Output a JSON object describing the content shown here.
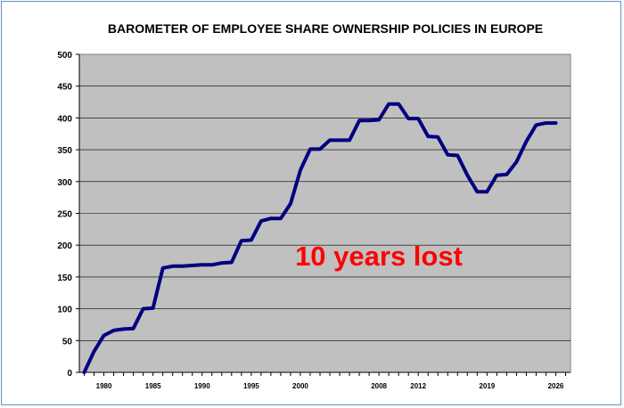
{
  "chart_data": {
    "type": "line",
    "title": "BAROMETER OF EMPLOYEE SHARE OWNERSHIP POLICIES IN EUROPE",
    "xlabel": "",
    "ylabel": "",
    "ylim": [
      0,
      500
    ],
    "yticks": [
      "0",
      "50",
      "100",
      "150",
      "200",
      "250",
      "300",
      "350",
      "400",
      "450",
      "500"
    ],
    "xtick_labels": [
      "1980",
      "1985",
      "1990",
      "1995",
      "2000",
      "2008",
      "2012",
      "2019",
      "2026"
    ],
    "xlim": [
      1977.5,
      2027.5
    ],
    "grid": true,
    "annotation": "10 years lost",
    "line_color": "#000080",
    "plot_background": "#c0c0c0",
    "series": [
      {
        "x": [
          1978,
          1979,
          1980,
          1981,
          1982,
          1983,
          1984,
          1985,
          1986,
          1987,
          1988,
          1989,
          1990,
          1991,
          1992,
          1993,
          1994,
          1995,
          1996,
          1997,
          1998,
          1999,
          2000,
          2001,
          2002,
          2003,
          2004,
          2005,
          2006,
          2007,
          2008,
          2009,
          2010,
          2011,
          2012,
          2013,
          2014,
          2015,
          2016,
          2017,
          2018,
          2019,
          2020,
          2021,
          2022,
          2023,
          2024,
          2025,
          2026
        ],
        "values": [
          0,
          33,
          58,
          66,
          68,
          69,
          100,
          101,
          164,
          167,
          167,
          168,
          169,
          169,
          172,
          173,
          207,
          208,
          238,
          242,
          242,
          265,
          318,
          351,
          351,
          365,
          365,
          365,
          396,
          396,
          397,
          422,
          422,
          399,
          399,
          371,
          370,
          342,
          341,
          310,
          284,
          284,
          310,
          311,
          331,
          363,
          389,
          392,
          392
        ]
      }
    ]
  }
}
